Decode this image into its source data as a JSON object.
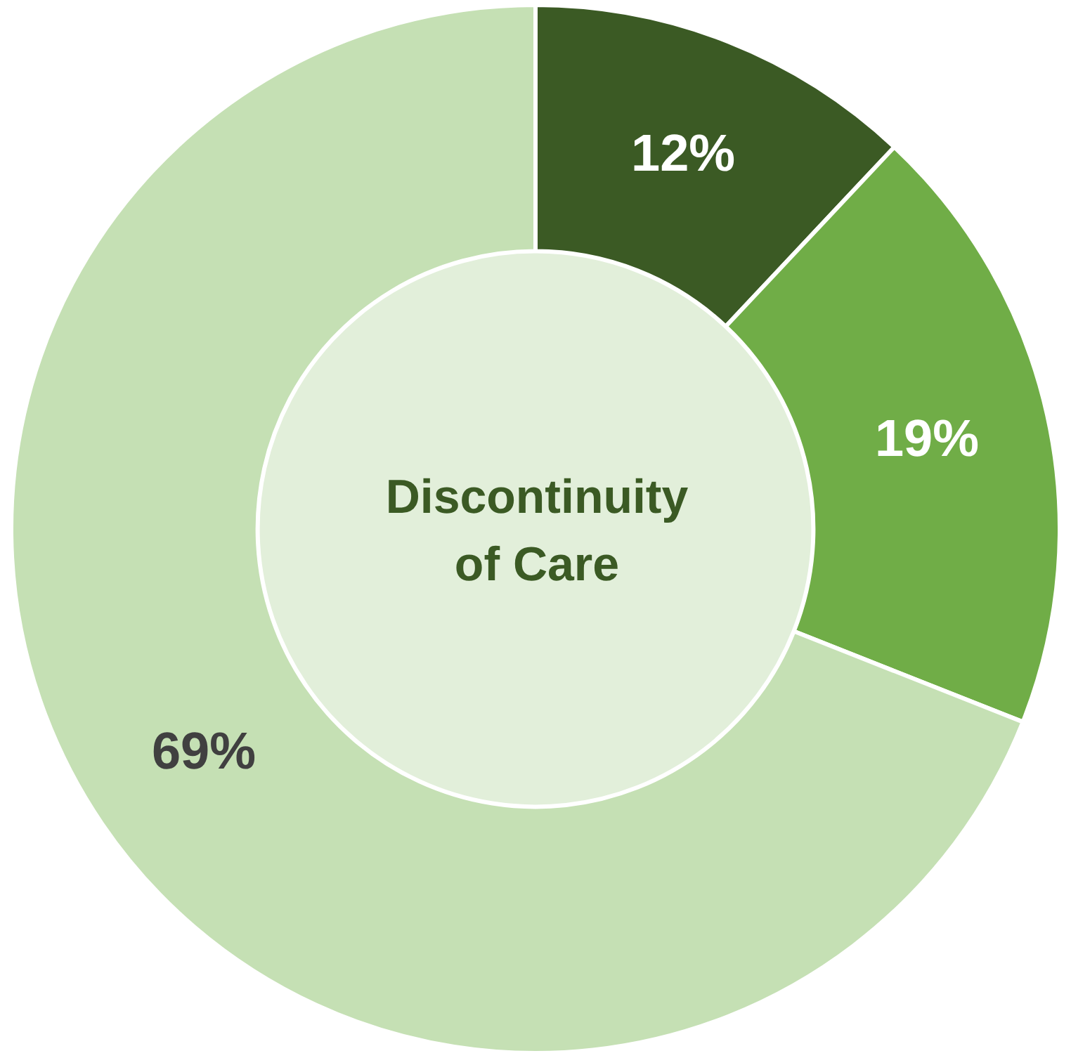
{
  "chart_data": {
    "type": "donut",
    "title": "Discontinuity of Care",
    "categories": [
      null,
      null,
      null
    ],
    "values": [
      12,
      19,
      69
    ],
    "colors": [
      "#3b5a24",
      "#70ad47",
      "#c5e0b4"
    ],
    "value_labels": [
      "12%",
      "19%",
      "69%"
    ],
    "legend": false
  }
}
